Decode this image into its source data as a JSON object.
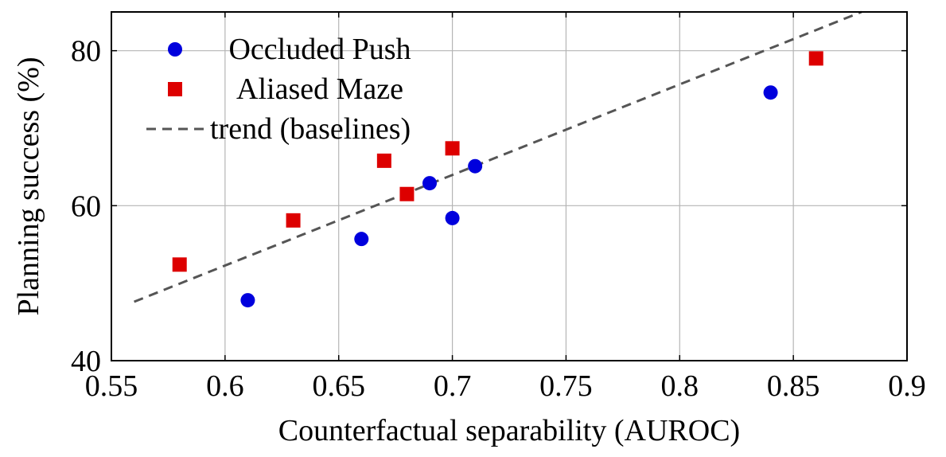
{
  "chart_data": {
    "type": "scatter",
    "xlabel": "Counterfactual separability (AUROC)",
    "ylabel": "Planning success (%)",
    "xlim": [
      0.55,
      0.9
    ],
    "ylim": [
      40,
      85
    ],
    "x_ticks": [
      0.55,
      0.6,
      0.65,
      0.7,
      0.75,
      0.8,
      0.85,
      0.9
    ],
    "x_tick_labels": [
      "0.55",
      "0.6",
      "0.65",
      "0.7",
      "0.75",
      "0.8",
      "0.85",
      "0.9"
    ],
    "y_ticks": [
      40,
      60,
      80
    ],
    "y_tick_labels": [
      "40",
      "60",
      "80"
    ],
    "grid": true,
    "legend_position": "top-left",
    "series": [
      {
        "name": "Occluded Push",
        "marker": "circle",
        "color": "#0000dd",
        "points": [
          {
            "x": 0.61,
            "y": 47.8
          },
          {
            "x": 0.66,
            "y": 55.7
          },
          {
            "x": 0.69,
            "y": 62.9
          },
          {
            "x": 0.7,
            "y": 58.4
          },
          {
            "x": 0.71,
            "y": 65.1
          },
          {
            "x": 0.84,
            "y": 74.6
          }
        ]
      },
      {
        "name": "Aliased Maze",
        "marker": "square",
        "color": "#dd0000",
        "points": [
          {
            "x": 0.58,
            "y": 52.4
          },
          {
            "x": 0.63,
            "y": 58.1
          },
          {
            "x": 0.67,
            "y": 65.8
          },
          {
            "x": 0.68,
            "y": 61.5
          },
          {
            "x": 0.7,
            "y": 67.4
          },
          {
            "x": 0.86,
            "y": 79.0
          }
        ]
      },
      {
        "name": "trend (baselines)",
        "kind": "line",
        "style": "dashed",
        "color": "#555555",
        "points": [
          {
            "x": 0.56,
            "y": 47.6
          },
          {
            "x": 0.88,
            "y": 85.0
          }
        ]
      }
    ]
  }
}
